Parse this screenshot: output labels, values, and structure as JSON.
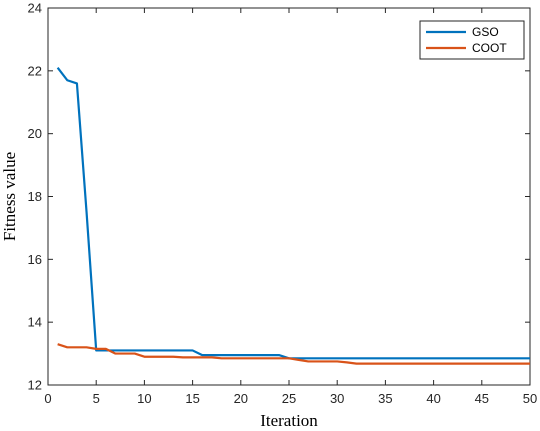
{
  "chart_data": {
    "type": "line",
    "xlabel": "Iteration",
    "ylabel": "Fitness value",
    "xlim": [
      0,
      50
    ],
    "ylim": [
      12,
      24
    ],
    "xticks": [
      0,
      5,
      10,
      15,
      20,
      25,
      30,
      35,
      40,
      45,
      50
    ],
    "yticks": [
      12,
      14,
      16,
      18,
      20,
      22,
      24
    ],
    "grid": false,
    "legend_position": "top-right",
    "series": [
      {
        "name": "GSO",
        "color": "#0072BD",
        "points": [
          [
            1,
            22.1
          ],
          [
            2,
            21.7
          ],
          [
            3,
            21.6
          ],
          [
            4,
            17.5
          ],
          [
            5,
            13.1
          ],
          [
            6,
            13.1
          ],
          [
            7,
            13.1
          ],
          [
            8,
            13.1
          ],
          [
            9,
            13.1
          ],
          [
            10,
            13.1
          ],
          [
            11,
            13.1
          ],
          [
            12,
            13.1
          ],
          [
            13,
            13.1
          ],
          [
            14,
            13.1
          ],
          [
            15,
            13.1
          ],
          [
            16,
            12.95
          ],
          [
            17,
            12.95
          ],
          [
            18,
            12.95
          ],
          [
            19,
            12.95
          ],
          [
            20,
            12.95
          ],
          [
            21,
            12.95
          ],
          [
            22,
            12.95
          ],
          [
            23,
            12.95
          ],
          [
            24,
            12.95
          ],
          [
            25,
            12.85
          ],
          [
            26,
            12.85
          ],
          [
            27,
            12.85
          ],
          [
            28,
            12.85
          ],
          [
            29,
            12.85
          ],
          [
            30,
            12.85
          ],
          [
            31,
            12.85
          ],
          [
            32,
            12.85
          ],
          [
            33,
            12.85
          ],
          [
            34,
            12.85
          ],
          [
            35,
            12.85
          ],
          [
            36,
            12.85
          ],
          [
            37,
            12.85
          ],
          [
            38,
            12.85
          ],
          [
            39,
            12.85
          ],
          [
            40,
            12.85
          ],
          [
            41,
            12.85
          ],
          [
            42,
            12.85
          ],
          [
            43,
            12.85
          ],
          [
            44,
            12.85
          ],
          [
            45,
            12.85
          ],
          [
            46,
            12.85
          ],
          [
            47,
            12.85
          ],
          [
            48,
            12.85
          ],
          [
            49,
            12.85
          ],
          [
            50,
            12.85
          ]
        ]
      },
      {
        "name": "COOT",
        "color": "#D95319",
        "points": [
          [
            1,
            13.3
          ],
          [
            2,
            13.2
          ],
          [
            3,
            13.2
          ],
          [
            4,
            13.2
          ],
          [
            5,
            13.15
          ],
          [
            6,
            13.15
          ],
          [
            7,
            13.0
          ],
          [
            8,
            13.0
          ],
          [
            9,
            13.0
          ],
          [
            10,
            12.9
          ],
          [
            11,
            12.9
          ],
          [
            12,
            12.9
          ],
          [
            13,
            12.9
          ],
          [
            14,
            12.88
          ],
          [
            15,
            12.88
          ],
          [
            16,
            12.88
          ],
          [
            17,
            12.88
          ],
          [
            18,
            12.85
          ],
          [
            19,
            12.85
          ],
          [
            20,
            12.85
          ],
          [
            21,
            12.85
          ],
          [
            22,
            12.85
          ],
          [
            23,
            12.85
          ],
          [
            24,
            12.85
          ],
          [
            25,
            12.85
          ],
          [
            26,
            12.8
          ],
          [
            27,
            12.75
          ],
          [
            28,
            12.75
          ],
          [
            29,
            12.75
          ],
          [
            30,
            12.75
          ],
          [
            31,
            12.72
          ],
          [
            32,
            12.68
          ],
          [
            33,
            12.68
          ],
          [
            34,
            12.68
          ],
          [
            35,
            12.68
          ],
          [
            36,
            12.68
          ],
          [
            37,
            12.68
          ],
          [
            38,
            12.68
          ],
          [
            39,
            12.68
          ],
          [
            40,
            12.68
          ],
          [
            41,
            12.68
          ],
          [
            42,
            12.68
          ],
          [
            43,
            12.68
          ],
          [
            44,
            12.68
          ],
          [
            45,
            12.68
          ],
          [
            46,
            12.68
          ],
          [
            47,
            12.68
          ],
          [
            48,
            12.68
          ],
          [
            49,
            12.68
          ],
          [
            50,
            12.68
          ]
        ]
      }
    ]
  }
}
